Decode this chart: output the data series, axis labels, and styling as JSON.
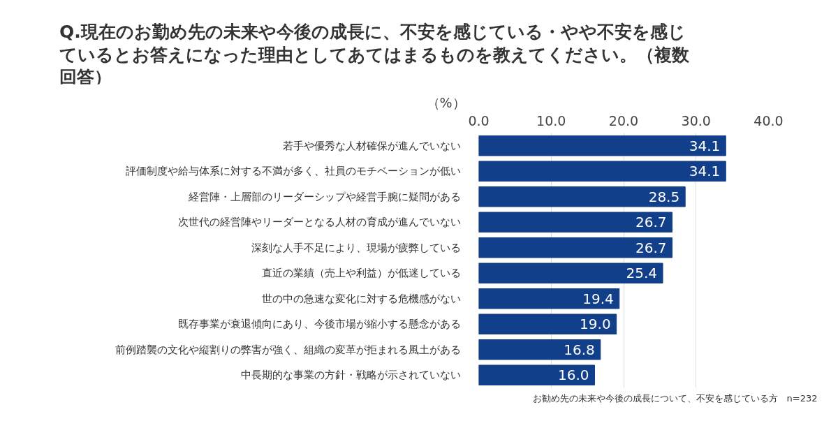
{
  "chart_data": {
    "type": "bar",
    "orientation": "horizontal",
    "title": "Q.現在のお勤め先の未来や今後の成長に、不安を感じている・やや不安を感じているとお答えになった理由としてあてはまるものを教えてください。（複数回答）",
    "xlabel": "（%）",
    "categories": [
      "若手や優秀な人材確保が進んでいない",
      "評価制度や給与体系に対する不満が多く、社員のモチベーションが低い",
      "経営陣・上層部のリーダーシップや経営手腕に疑問がある",
      "次世代の経営陣やリーダーとなる人材の育成が進んでいない",
      "深刻な人手不足により、現場が疲弊している",
      "直近の業績（売上や利益）が低迷している",
      "世の中の急速な変化に対する危機感がない",
      "既存事業が衰退傾向にあり、今後市場が縮小する懸念がある",
      "前例踏襲の文化や縦割りの弊害が強く、組織の変革が拒まれる風土がある",
      "中長期的な事業の方針・戦略が示されていない"
    ],
    "values": [
      34.1,
      34.1,
      28.5,
      26.7,
      26.7,
      25.4,
      19.4,
      19.0,
      16.8,
      16.0
    ],
    "color": "#123f8a",
    "xlim": [
      0,
      40
    ],
    "xticks": [
      {
        "value": 0,
        "label": "0.0"
      },
      {
        "value": 10,
        "label": "10.0"
      },
      {
        "value": 20,
        "label": "20.0"
      },
      {
        "value": 30,
        "label": "30.0"
      },
      {
        "value": 40,
        "label": "40.0"
      }
    ],
    "grid": "x",
    "value_labels": [
      "34.1",
      "34.1",
      "28.5",
      "26.7",
      "26.7",
      "25.4",
      "19.4",
      "19.0",
      "16.8",
      "16.0"
    ],
    "annotations": [
      "お勧め先の未来や今後の成長について、不安を感じている方　n=232"
    ]
  }
}
